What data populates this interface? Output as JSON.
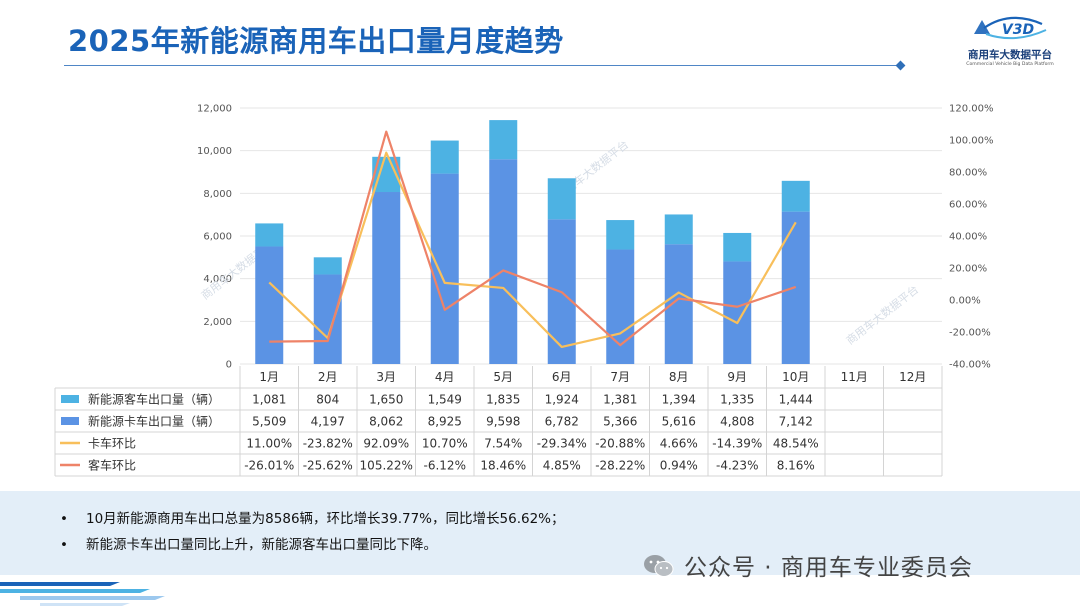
{
  "title": "2025年新能源商用车出口量月度趋势",
  "logo": {
    "name": "商用车大数据平台",
    "sub": "Commercial Vehicle Big Data Platform",
    "mark": "V3D"
  },
  "notes": [
    "10月新能源商用车出口总量为8586辆，环比增长39.77%，同比增长56.62%；",
    "新能源卡车出口量同比上升，新能源客车出口量同比下降。"
  ],
  "signature": "公众号 · 商用车专业委员会",
  "watermark": "商用车大数据平台",
  "colors": {
    "bus_bar": "#4db2e3",
    "truck_bar": "#5b93e4",
    "truck_mom": "#f8bf5b",
    "bus_mom": "#ee8368",
    "title": "#1a63b8"
  },
  "chart_data": {
    "type": "bar",
    "stacked": true,
    "categories": [
      "1月",
      "2月",
      "3月",
      "4月",
      "5月",
      "6月",
      "7月",
      "8月",
      "9月",
      "10月",
      "11月",
      "12月"
    ],
    "left_axis": {
      "min": 0,
      "max": 12000,
      "ticks": [
        "0",
        "2,000",
        "4,000",
        "6,000",
        "8,000",
        "10,000",
        "12,000"
      ]
    },
    "right_axis": {
      "min": -40,
      "max": 120,
      "ticks": [
        "-40.00%",
        "-20.00%",
        "0.00%",
        "20.00%",
        "40.00%",
        "60.00%",
        "80.00%",
        "100.00%",
        "120.00%"
      ]
    },
    "grid": true,
    "series": [
      {
        "name": "新能源客车出口量（辆）",
        "kind": "bar",
        "values": [
          1081,
          804,
          1650,
          1549,
          1835,
          1924,
          1381,
          1394,
          1335,
          1444,
          null,
          null
        ],
        "labels": [
          "1,081",
          "804",
          "1,650",
          "1,549",
          "1,835",
          "1,924",
          "1,381",
          "1,394",
          "1,335",
          "1,444",
          "",
          ""
        ]
      },
      {
        "name": "新能源卡车出口量（辆）",
        "kind": "bar",
        "values": [
          5509,
          4197,
          8062,
          8925,
          9598,
          6782,
          5366,
          5616,
          4808,
          7142,
          null,
          null
        ],
        "labels": [
          "5,509",
          "4,197",
          "8,062",
          "8,925",
          "9,598",
          "6,782",
          "5,366",
          "5,616",
          "4,808",
          "7,142",
          "",
          ""
        ]
      },
      {
        "name": "卡车环比",
        "kind": "line",
        "axis": "right",
        "values": [
          11.0,
          -23.82,
          92.09,
          10.7,
          7.54,
          -29.34,
          -20.88,
          4.66,
          -14.39,
          48.54,
          null,
          null
        ],
        "labels": [
          "11.00%",
          "-23.82%",
          "92.09%",
          "10.70%",
          "7.54%",
          "-29.34%",
          "-20.88%",
          "4.66%",
          "-14.39%",
          "48.54%",
          "",
          ""
        ]
      },
      {
        "name": "客车环比",
        "kind": "line",
        "axis": "right",
        "values": [
          -26.01,
          -25.62,
          105.22,
          -6.12,
          18.46,
          4.85,
          -28.22,
          0.94,
          -4.23,
          8.16,
          null,
          null
        ],
        "labels": [
          "-26.01%",
          "-25.62%",
          "105.22%",
          "-6.12%",
          "18.46%",
          "4.85%",
          "-28.22%",
          "0.94%",
          "-4.23%",
          "8.16%",
          "",
          ""
        ]
      }
    ]
  }
}
